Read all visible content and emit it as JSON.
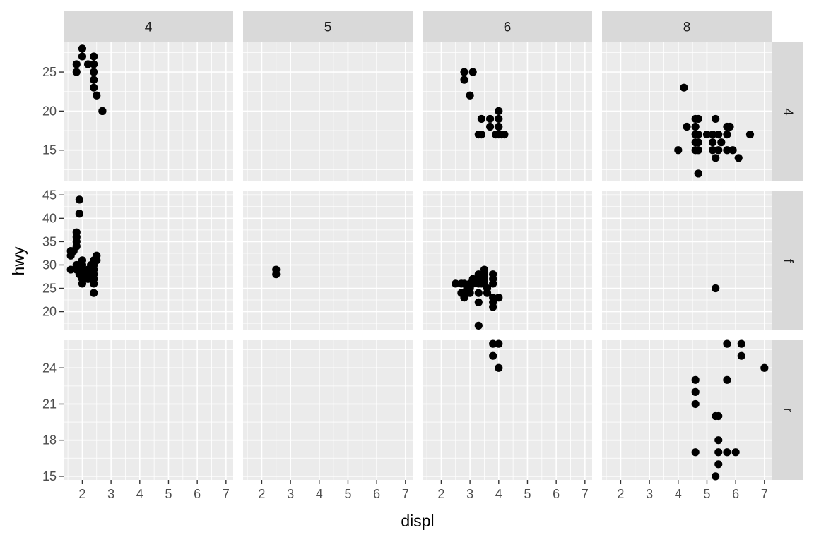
{
  "chart_data": {
    "type": "scatter",
    "xlabel": "displ",
    "ylabel": "hwy",
    "xlim": [
      1.35,
      7.25
    ],
    "x_ticks": [
      2,
      3,
      4,
      5,
      6,
      7
    ],
    "col_facets": [
      "4",
      "5",
      "6",
      "8"
    ],
    "row_facets": [
      "4",
      "f",
      "r"
    ],
    "row_scales": [
      {
        "ylim": [
          11,
          28.8
        ],
        "ticks": [
          15,
          20,
          25
        ]
      },
      {
        "ylim": [
          16,
          45.8
        ],
        "ticks": [
          20,
          25,
          30,
          35,
          40,
          45
        ]
      },
      {
        "ylim": [
          14.7,
          26.3
        ],
        "ticks": [
          15,
          18,
          21,
          24
        ]
      }
    ],
    "grid": true,
    "panels": [
      {
        "row": "4",
        "col": "4",
        "points": [
          [
            1.8,
            26
          ],
          [
            1.8,
            25
          ],
          [
            2.0,
            28
          ],
          [
            2.0,
            27
          ],
          [
            2.2,
            26
          ],
          [
            2.4,
            27
          ],
          [
            2.4,
            26
          ],
          [
            2.4,
            25
          ],
          [
            2.4,
            24
          ],
          [
            2.4,
            23
          ],
          [
            2.5,
            22
          ],
          [
            2.7,
            20
          ],
          [
            2.7,
            20
          ]
        ]
      },
      {
        "row": "4",
        "col": "5",
        "points": []
      },
      {
        "row": "4",
        "col": "6",
        "points": [
          [
            2.8,
            25
          ],
          [
            2.8,
            24
          ],
          [
            3.1,
            25
          ],
          [
            3.0,
            22
          ],
          [
            3.3,
            17
          ],
          [
            3.4,
            17
          ],
          [
            3.4,
            19
          ],
          [
            3.7,
            19
          ],
          [
            3.7,
            18
          ],
          [
            4.0,
            20
          ],
          [
            4.0,
            19
          ],
          [
            4.0,
            18
          ],
          [
            4.0,
            17
          ],
          [
            3.9,
            17
          ],
          [
            4.2,
            17
          ],
          [
            4.1,
            17
          ]
        ]
      },
      {
        "row": "4",
        "col": "8",
        "points": [
          [
            4.2,
            23
          ],
          [
            4.0,
            15
          ],
          [
            4.3,
            18
          ],
          [
            4.6,
            19
          ],
          [
            4.7,
            19
          ],
          [
            4.6,
            18
          ],
          [
            4.6,
            17
          ],
          [
            4.7,
            17
          ],
          [
            4.6,
            16
          ],
          [
            4.7,
            16
          ],
          [
            4.6,
            15
          ],
          [
            4.7,
            15
          ],
          [
            4.7,
            12
          ],
          [
            4.7,
            12
          ],
          [
            5.0,
            17
          ],
          [
            5.2,
            17
          ],
          [
            5.2,
            16
          ],
          [
            5.2,
            15
          ],
          [
            5.3,
            19
          ],
          [
            5.3,
            14
          ],
          [
            5.4,
            17
          ],
          [
            5.4,
            15
          ],
          [
            5.5,
            16
          ],
          [
            5.7,
            18
          ],
          [
            5.7,
            17
          ],
          [
            5.8,
            18
          ],
          [
            5.7,
            15
          ],
          [
            5.9,
            15
          ],
          [
            6.1,
            14
          ],
          [
            6.5,
            17
          ]
        ]
      },
      {
        "row": "f",
        "col": "4",
        "points": [
          [
            1.6,
            33
          ],
          [
            1.6,
            32
          ],
          [
            1.6,
            29
          ],
          [
            1.7,
            33
          ],
          [
            1.8,
            37
          ],
          [
            1.8,
            36
          ],
          [
            1.8,
            35
          ],
          [
            1.8,
            34
          ],
          [
            1.8,
            30
          ],
          [
            1.8,
            29
          ],
          [
            1.9,
            44
          ],
          [
            1.9,
            41
          ],
          [
            1.9,
            30
          ],
          [
            1.9,
            29
          ],
          [
            1.9,
            28
          ],
          [
            2.0,
            31
          ],
          [
            2.0,
            30
          ],
          [
            2.0,
            29
          ],
          [
            2.0,
            28
          ],
          [
            2.0,
            27
          ],
          [
            2.0,
            26
          ],
          [
            2.2,
            29
          ],
          [
            2.2,
            28
          ],
          [
            2.2,
            27
          ],
          [
            2.3,
            30
          ],
          [
            2.3,
            28
          ],
          [
            2.4,
            31
          ],
          [
            2.4,
            30
          ],
          [
            2.4,
            29
          ],
          [
            2.4,
            28
          ],
          [
            2.4,
            27
          ],
          [
            2.4,
            26
          ],
          [
            2.4,
            24
          ],
          [
            2.5,
            32
          ],
          [
            2.5,
            31
          ]
        ]
      },
      {
        "row": "f",
        "col": "5",
        "points": [
          [
            2.5,
            29
          ],
          [
            2.5,
            28
          ]
        ]
      },
      {
        "row": "f",
        "col": "6",
        "points": [
          [
            2.5,
            26
          ],
          [
            2.7,
            26
          ],
          [
            2.7,
            24
          ],
          [
            2.8,
            26
          ],
          [
            2.8,
            24
          ],
          [
            2.8,
            23
          ],
          [
            2.9,
            25
          ],
          [
            3.0,
            26
          ],
          [
            3.0,
            25
          ],
          [
            3.0,
            24
          ],
          [
            3.1,
            27
          ],
          [
            3.1,
            26
          ],
          [
            3.3,
            28
          ],
          [
            3.3,
            27
          ],
          [
            3.3,
            26
          ],
          [
            3.3,
            24
          ],
          [
            3.3,
            22
          ],
          [
            3.3,
            17
          ],
          [
            3.4,
            26
          ],
          [
            3.5,
            29
          ],
          [
            3.5,
            28
          ],
          [
            3.5,
            27
          ],
          [
            3.5,
            26
          ],
          [
            3.6,
            25
          ],
          [
            3.6,
            24
          ],
          [
            3.8,
            28
          ],
          [
            3.8,
            27
          ],
          [
            3.8,
            26
          ],
          [
            3.8,
            23
          ],
          [
            3.8,
            22
          ],
          [
            3.8,
            21
          ],
          [
            4.0,
            23
          ]
        ]
      },
      {
        "row": "f",
        "col": "8",
        "points": [
          [
            5.3,
            25
          ]
        ]
      },
      {
        "row": "r",
        "col": "4",
        "points": []
      },
      {
        "row": "r",
        "col": "5",
        "points": []
      },
      {
        "row": "r",
        "col": "6",
        "points": [
          [
            3.8,
            26
          ],
          [
            4.0,
            26
          ],
          [
            3.8,
            25
          ],
          [
            4.0,
            24
          ]
        ]
      },
      {
        "row": "r",
        "col": "8",
        "points": [
          [
            4.6,
            23
          ],
          [
            4.6,
            22
          ],
          [
            4.6,
            21
          ],
          [
            4.6,
            17
          ],
          [
            5.3,
            20
          ],
          [
            5.4,
            20
          ],
          [
            5.4,
            18
          ],
          [
            5.4,
            17
          ],
          [
            5.4,
            16
          ],
          [
            5.3,
            15
          ],
          [
            5.7,
            26
          ],
          [
            5.7,
            23
          ],
          [
            5.7,
            17
          ],
          [
            6.0,
            17
          ],
          [
            6.2,
            26
          ],
          [
            6.2,
            25
          ],
          [
            7.0,
            24
          ]
        ]
      }
    ]
  }
}
